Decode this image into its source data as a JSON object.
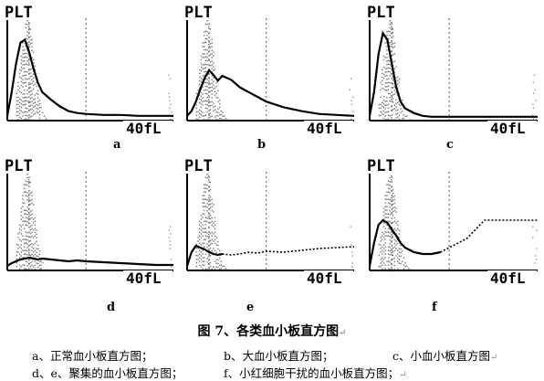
{
  "chart_data": [
    {
      "type": "line",
      "id": "a",
      "panel_label": "PLT",
      "tick_label": "40fL",
      "letter": "a",
      "x": [
        2,
        3,
        4,
        5,
        6,
        7,
        8,
        9,
        10,
        12,
        14,
        16,
        18,
        20,
        24,
        28,
        32,
        36,
        40
      ],
      "series": [
        {
          "values": [
            0.05,
            0.3,
            0.6,
            0.82,
            0.85,
            0.72,
            0.55,
            0.4,
            0.3,
            0.22,
            0.15,
            0.1,
            0.08,
            0.07,
            0.06,
            0.06,
            0.05,
            0.05,
            0.05
          ]
        }
      ]
    },
    {
      "type": "line",
      "id": "b",
      "panel_label": "PLT",
      "tick_label": "40fL",
      "letter": "b",
      "x": [
        2,
        3,
        4,
        5,
        6,
        7,
        8,
        9,
        10,
        12,
        14,
        16,
        18,
        20,
        24,
        28,
        32,
        36,
        40
      ],
      "series": [
        {
          "values": [
            0.05,
            0.1,
            0.2,
            0.33,
            0.45,
            0.53,
            0.48,
            0.42,
            0.47,
            0.43,
            0.35,
            0.3,
            0.25,
            0.2,
            0.14,
            0.1,
            0.07,
            0.06,
            0.05
          ]
        }
      ]
    },
    {
      "type": "line",
      "id": "c",
      "panel_label": "PLT",
      "tick_label": "40fL",
      "letter": "c",
      "x": [
        2,
        3,
        4,
        5,
        6,
        7,
        8,
        9,
        10,
        12,
        14,
        16,
        18,
        20,
        24,
        28,
        32,
        36,
        40
      ],
      "series": [
        {
          "values": [
            0.05,
            0.3,
            0.7,
            0.92,
            0.85,
            0.6,
            0.35,
            0.2,
            0.13,
            0.08,
            0.05,
            0.04,
            0.04,
            0.04,
            0.04,
            0.04,
            0.04,
            0.04,
            0.04
          ]
        }
      ]
    },
    {
      "type": "line",
      "id": "d",
      "panel_label": "PLT",
      "tick_label": "40fL",
      "letter": "d",
      "x": [
        2,
        3,
        4,
        5,
        6,
        7,
        8,
        9,
        10,
        12,
        14,
        16,
        18,
        20,
        24,
        28,
        32,
        36,
        40
      ],
      "series": [
        {
          "values": [
            0.05,
            0.08,
            0.1,
            0.12,
            0.13,
            0.14,
            0.13,
            0.12,
            0.13,
            0.12,
            0.11,
            0.1,
            0.11,
            0.1,
            0.09,
            0.08,
            0.07,
            0.06,
            0.06
          ]
        }
      ]
    },
    {
      "type": "line",
      "id": "e",
      "panel_label": "PLT",
      "tick_label": "40fL",
      "letter": "e",
      "x": [
        2,
        3,
        4,
        5,
        6,
        7,
        8,
        9,
        10,
        12,
        14,
        16,
        18,
        20,
        24,
        28,
        32,
        36,
        40
      ],
      "series": [
        {
          "values": [
            0.05,
            0.2,
            0.27,
            0.25,
            0.23,
            0.2,
            0.18,
            0.17,
            0.18,
            0.17,
            0.18,
            0.2,
            0.19,
            0.21,
            0.2,
            0.22,
            0.24,
            0.25,
            0.26
          ]
        }
      ]
    },
    {
      "type": "line",
      "id": "f",
      "panel_label": "PLT",
      "tick_label": "40fL",
      "letter": "f",
      "x": [
        2,
        3,
        4,
        5,
        6,
        7,
        8,
        9,
        10,
        12,
        14,
        16,
        18,
        20,
        24,
        28,
        32,
        36,
        40
      ],
      "series": [
        {
          "values": [
            0.05,
            0.3,
            0.5,
            0.55,
            0.52,
            0.45,
            0.38,
            0.3,
            0.25,
            0.2,
            0.18,
            0.18,
            0.2,
            0.25,
            0.35,
            0.55,
            0.55,
            0.55,
            0.55
          ]
        }
      ]
    }
  ],
  "caption": {
    "title": "图 7、各类血小板直方图",
    "return_mark": "↵",
    "line1": {
      "a": "a、正常血小板直方图；",
      "b": "b、大血小板直方图；",
      "c": "c、小血小板直方图"
    },
    "line2": {
      "de": "d、e、聚集的血小板直方图；",
      "f": "f、小红细胞干扰的血小板直方图；"
    }
  }
}
